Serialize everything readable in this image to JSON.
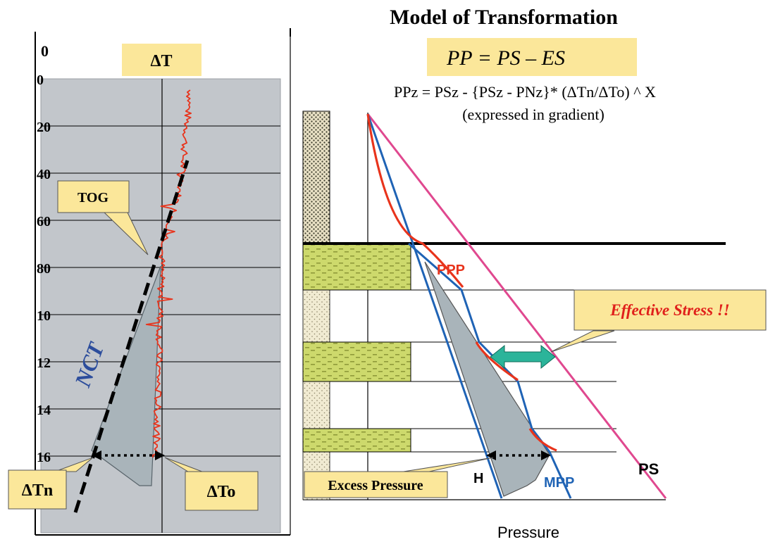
{
  "title": "Model of Transformation",
  "main_equation": "PP = PS – ES",
  "sub_equation": "PPz = PSz - {PSz - PNz}* (ΔTn/ΔTo) ^ X",
  "sub_equation_note": "(expressed in gradient)",
  "left_panel": {
    "header_label": "ΔT",
    "top_tick": "0",
    "depth_ticks": [
      "0",
      "20",
      "40",
      "60",
      "80",
      "10",
      "12",
      "14",
      "16"
    ],
    "tog_label": "TOG",
    "nct_label": "NCT",
    "dtn_label": "ΔTn",
    "dto_label": "ΔTo"
  },
  "right_panel": {
    "ppp_label": "PPP",
    "mpp_label": "MPP",
    "ps_label": "PS",
    "h_label": "H",
    "effective_stress_label": "Effective Stress !!",
    "excess_pressure_label": "Excess Pressure",
    "x_axis_label": "Pressure"
  },
  "colors": {
    "panel_gray": "#c2c6cb",
    "label_yellow": "#fbe79a",
    "log_red": "#e8341c",
    "ps_pink": "#e0488f",
    "mpp_blue": "#1f63b5",
    "arrow_teal": "#2bb49a",
    "sand_green": "#c9d66a",
    "nct_blue": "#2c4d9c",
    "es_red": "#e0201b"
  }
}
